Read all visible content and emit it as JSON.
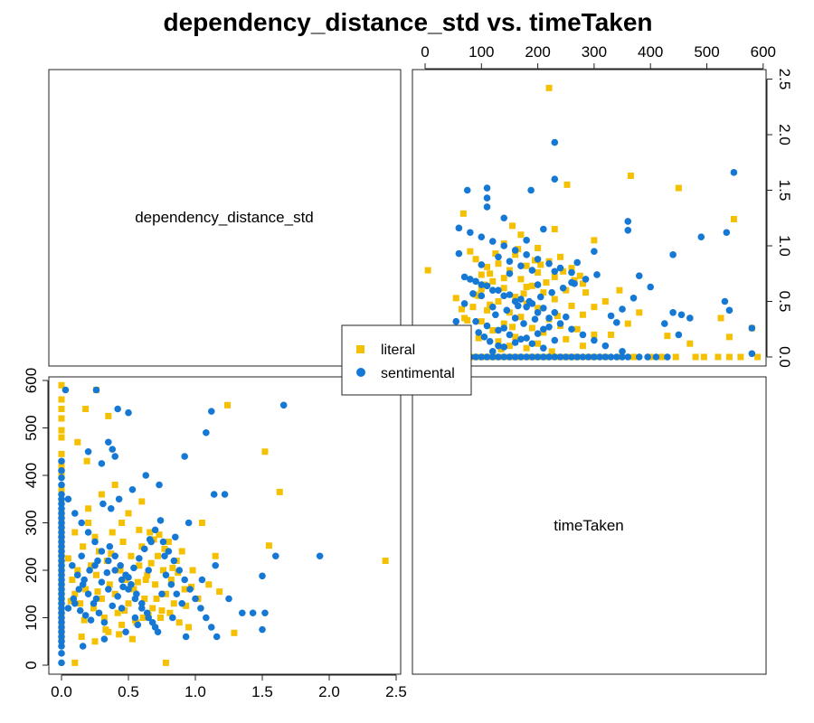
{
  "chart_data": {
    "type": "scatter",
    "title": "dependency_distance_std vs. timeTaken",
    "layout": "pairs-2x2",
    "variables": [
      "dependency_distance_std",
      "timeTaken"
    ],
    "grid": false,
    "legend_position": "center",
    "axes": {
      "dependency_distance_std": {
        "range": [
          -0.1,
          2.5
        ],
        "ticks": [
          "0.0",
          "0.5",
          "1.0",
          "1.5",
          "2.0",
          "2.5"
        ],
        "tick_values": [
          0,
          0.5,
          1,
          1.5,
          2,
          2.5
        ]
      },
      "timeTaken": {
        "range": [
          -10,
          620
        ],
        "ticks": [
          "0",
          "100",
          "200",
          "300",
          "400",
          "500",
          "600"
        ],
        "tick_values": [
          0,
          100,
          200,
          300,
          400,
          500,
          600
        ]
      }
    },
    "series": [
      {
        "name": "literal",
        "color": "#F5C000",
        "marker": "square",
        "points": [
          [
            2.42,
            220
          ],
          [
            1.63,
            365
          ],
          [
            1.55,
            252
          ],
          [
            1.52,
            450
          ],
          [
            1.24,
            548
          ],
          [
            1.29,
            68
          ],
          [
            0.78,
            5
          ],
          [
            0.1,
            5
          ],
          [
            0.12,
            470
          ],
          [
            0.18,
            540
          ],
          [
            0.35,
            525
          ],
          [
            0.26,
            580
          ],
          [
            0.0,
            520
          ],
          [
            0.0,
            495
          ],
          [
            0.0,
            480
          ],
          [
            0.0,
            445
          ],
          [
            0.0,
            420
          ],
          [
            0.0,
            400
          ],
          [
            0.0,
            370
          ],
          [
            0.0,
            345
          ],
          [
            0.0,
            560
          ],
          [
            0.0,
            540
          ],
          [
            0.0,
            590
          ],
          [
            0.0,
            320
          ],
          [
            0.0,
            300
          ],
          [
            0.0,
            290
          ],
          [
            0.0,
            270
          ],
          [
            0.0,
            260
          ],
          [
            0.0,
            250
          ],
          [
            0.0,
            240
          ],
          [
            0.0,
            230
          ],
          [
            0.0,
            215
          ],
          [
            0.0,
            205
          ],
          [
            0.0,
            195
          ],
          [
            0.0,
            185
          ],
          [
            0.0,
            170
          ],
          [
            0.0,
            160
          ],
          [
            0.0,
            150
          ],
          [
            0.0,
            140
          ],
          [
            0.0,
            130
          ],
          [
            0.0,
            120
          ],
          [
            0.0,
            110
          ],
          [
            0.0,
            100
          ],
          [
            0.0,
            90
          ],
          [
            0.0,
            80
          ],
          [
            0.0,
            70
          ],
          [
            0.0,
            55
          ],
          [
            0.05,
            225
          ],
          [
            0.08,
            180
          ],
          [
            0.1,
            150
          ],
          [
            0.12,
            200
          ],
          [
            0.14,
            130
          ],
          [
            0.16,
            250
          ],
          [
            0.18,
            160
          ],
          [
            0.2,
            300
          ],
          [
            0.22,
            210
          ],
          [
            0.24,
            120
          ],
          [
            0.26,
            190
          ],
          [
            0.28,
            240
          ],
          [
            0.3,
            140
          ],
          [
            0.32,
            100
          ],
          [
            0.34,
            220
          ],
          [
            0.36,
            170
          ],
          [
            0.38,
            280
          ],
          [
            0.4,
            150
          ],
          [
            0.42,
            110
          ],
          [
            0.44,
            200
          ],
          [
            0.46,
            260
          ],
          [
            0.48,
            180
          ],
          [
            0.5,
            130
          ],
          [
            0.52,
            230
          ],
          [
            0.54,
            160
          ],
          [
            0.56,
            90
          ],
          [
            0.58,
            210
          ],
          [
            0.6,
            250
          ],
          [
            0.62,
            140
          ],
          [
            0.64,
            190
          ],
          [
            0.66,
            280
          ],
          [
            0.68,
            120
          ],
          [
            0.7,
            170
          ],
          [
            0.72,
            230
          ],
          [
            0.74,
            100
          ],
          [
            0.76,
            200
          ],
          [
            0.78,
            150
          ],
          [
            0.8,
            260
          ],
          [
            0.82,
            180
          ],
          [
            0.84,
            130
          ],
          [
            0.86,
            220
          ],
          [
            0.88,
            90
          ],
          [
            0.9,
            240
          ],
          [
            0.92,
            160
          ],
          [
            0.95,
            80
          ],
          [
            0.98,
            200
          ],
          [
            1.02,
            140
          ],
          [
            1.05,
            300
          ],
          [
            1.1,
            170
          ],
          [
            0.15,
            60
          ],
          [
            0.25,
            50
          ],
          [
            0.35,
            70
          ],
          [
            0.45,
            85
          ],
          [
            0.55,
            95
          ],
          [
            0.65,
            105
          ],
          [
            0.75,
            115
          ],
          [
            0.2,
            330
          ],
          [
            0.3,
            360
          ],
          [
            0.4,
            380
          ],
          [
            0.5,
            320
          ],
          [
            0.6,
            345
          ],
          [
            0.1,
            280
          ],
          [
            0.25,
            270
          ],
          [
            0.33,
            75
          ],
          [
            0.43,
            65
          ],
          [
            0.53,
            55
          ],
          [
            0.63,
            180
          ],
          [
            0.73,
            275
          ],
          [
            0.83,
            205
          ],
          [
            0.93,
            125
          ],
          [
            0.07,
            135
          ],
          [
            0.17,
            95
          ],
          [
            0.27,
            155
          ],
          [
            0.37,
            235
          ],
          [
            0.47,
            115
          ],
          [
            0.57,
            175
          ],
          [
            0.67,
            215
          ],
          [
            0.77,
            245
          ],
          [
            0.87,
            195
          ],
          [
            0.97,
            165
          ],
          [
            1.15,
            230
          ],
          [
            1.18,
            155
          ],
          [
            0.19,
            430
          ],
          [
            0.45,
            300
          ],
          [
            0.58,
            285
          ],
          [
            0.69,
            265
          ],
          [
            0.81,
            110
          ],
          [
            0.71,
            140
          ],
          [
            0.61,
            100
          ]
        ]
      },
      {
        "name": "sentimental",
        "color": "#1478D4",
        "marker": "circle",
        "points": [
          [
            1.93,
            230
          ],
          [
            1.66,
            548
          ],
          [
            1.6,
            230
          ],
          [
            1.52,
            110
          ],
          [
            1.5,
            75
          ],
          [
            1.5,
            188
          ],
          [
            1.43,
            110
          ],
          [
            1.22,
            360
          ],
          [
            1.14,
            360
          ],
          [
            1.12,
            535
          ],
          [
            1.08,
            490
          ],
          [
            0.92,
            440
          ],
          [
            0.26,
            580
          ],
          [
            0.03,
            580
          ],
          [
            0.42,
            540
          ],
          [
            0.5,
            532
          ],
          [
            0.35,
            470
          ],
          [
            0.38,
            455
          ],
          [
            0.2,
            450
          ],
          [
            0.3,
            425
          ],
          [
            0.4,
            440
          ],
          [
            0.0,
            430
          ],
          [
            0.0,
            410
          ],
          [
            0.0,
            395
          ],
          [
            0.0,
            380
          ],
          [
            0.0,
            360
          ],
          [
            0.0,
            350
          ],
          [
            0.0,
            340
          ],
          [
            0.0,
            330
          ],
          [
            0.0,
            320
          ],
          [
            0.0,
            310
          ],
          [
            0.0,
            300
          ],
          [
            0.0,
            290
          ],
          [
            0.0,
            280
          ],
          [
            0.0,
            270
          ],
          [
            0.0,
            260
          ],
          [
            0.0,
            250
          ],
          [
            0.0,
            240
          ],
          [
            0.0,
            230
          ],
          [
            0.0,
            220
          ],
          [
            0.0,
            210
          ],
          [
            0.0,
            200
          ],
          [
            0.0,
            190
          ],
          [
            0.0,
            180
          ],
          [
            0.0,
            170
          ],
          [
            0.0,
            160
          ],
          [
            0.0,
            150
          ],
          [
            0.0,
            140
          ],
          [
            0.0,
            130
          ],
          [
            0.0,
            120
          ],
          [
            0.0,
            110
          ],
          [
            0.0,
            100
          ],
          [
            0.0,
            90
          ],
          [
            0.0,
            80
          ],
          [
            0.0,
            70
          ],
          [
            0.0,
            60
          ],
          [
            0.0,
            50
          ],
          [
            0.0,
            40
          ],
          [
            0.0,
            25
          ],
          [
            0.0,
            5
          ],
          [
            0.05,
            350
          ],
          [
            0.1,
            320
          ],
          [
            0.15,
            300
          ],
          [
            0.2,
            280
          ],
          [
            0.25,
            260
          ],
          [
            0.3,
            240
          ],
          [
            0.35,
            220
          ],
          [
            0.4,
            200
          ],
          [
            0.45,
            180
          ],
          [
            0.5,
            160
          ],
          [
            0.55,
            140
          ],
          [
            0.6,
            120
          ],
          [
            0.65,
            100
          ],
          [
            0.7,
            80
          ],
          [
            0.08,
            210
          ],
          [
            0.12,
            190
          ],
          [
            0.16,
            170
          ],
          [
            0.2,
            150
          ],
          [
            0.24,
            130
          ],
          [
            0.28,
            110
          ],
          [
            0.32,
            90
          ],
          [
            0.36,
            250
          ],
          [
            0.4,
            230
          ],
          [
            0.44,
            210
          ],
          [
            0.48,
            190
          ],
          [
            0.52,
            170
          ],
          [
            0.56,
            150
          ],
          [
            0.6,
            130
          ],
          [
            0.64,
            110
          ],
          [
            0.68,
            90
          ],
          [
            0.72,
            70
          ],
          [
            0.76,
            260
          ],
          [
            0.8,
            240
          ],
          [
            0.84,
            220
          ],
          [
            0.88,
            200
          ],
          [
            0.92,
            180
          ],
          [
            0.96,
            160
          ],
          [
            1.0,
            140
          ],
          [
            1.04,
            120
          ],
          [
            1.08,
            100
          ],
          [
            1.12,
            80
          ],
          [
            1.16,
            60
          ],
          [
            0.1,
            130
          ],
          [
            0.14,
            115
          ],
          [
            0.18,
            105
          ],
          [
            0.22,
            95
          ],
          [
            0.26,
            140
          ],
          [
            0.3,
            175
          ],
          [
            0.34,
            195
          ],
          [
            0.38,
            125
          ],
          [
            0.42,
            145
          ],
          [
            0.46,
            165
          ],
          [
            0.5,
            185
          ],
          [
            0.54,
            205
          ],
          [
            0.58,
            225
          ],
          [
            0.62,
            245
          ],
          [
            0.66,
            265
          ],
          [
            0.7,
            285
          ],
          [
            0.74,
            305
          ],
          [
            0.78,
            190
          ],
          [
            0.82,
            170
          ],
          [
            0.86,
            150
          ],
          [
            0.9,
            130
          ],
          [
            0.15,
            230
          ],
          [
            0.25,
            210
          ],
          [
            0.35,
            160
          ],
          [
            0.45,
            120
          ],
          [
            0.55,
            100
          ],
          [
            0.65,
            200
          ],
          [
            0.75,
            150
          ],
          [
            0.85,
            270
          ],
          [
            0.95,
            300
          ],
          [
            1.05,
            180
          ],
          [
            1.15,
            210
          ],
          [
            1.25,
            140
          ],
          [
            1.35,
            110
          ],
          [
            0.05,
            120
          ],
          [
            0.09,
            140
          ],
          [
            0.13,
            160
          ],
          [
            0.17,
            180
          ],
          [
            0.21,
            200
          ],
          [
            0.27,
            220
          ],
          [
            0.31,
            340
          ],
          [
            0.37,
            330
          ],
          [
            0.43,
            350
          ],
          [
            0.53,
            370
          ],
          [
            0.63,
            400
          ],
          [
            0.73,
            380
          ],
          [
            0.83,
            100
          ],
          [
            0.93,
            60
          ],
          [
            0.16,
            40
          ],
          [
            0.32,
            55
          ],
          [
            0.48,
            70
          ],
          [
            0.57,
            85
          ],
          [
            0.67,
            260
          ],
          [
            0.77,
            230
          ]
        ]
      }
    ],
    "diagonal_labels": [
      "dependency_distance_std",
      "timeTaken"
    ],
    "legend": [
      "literal",
      "sentimental"
    ]
  }
}
